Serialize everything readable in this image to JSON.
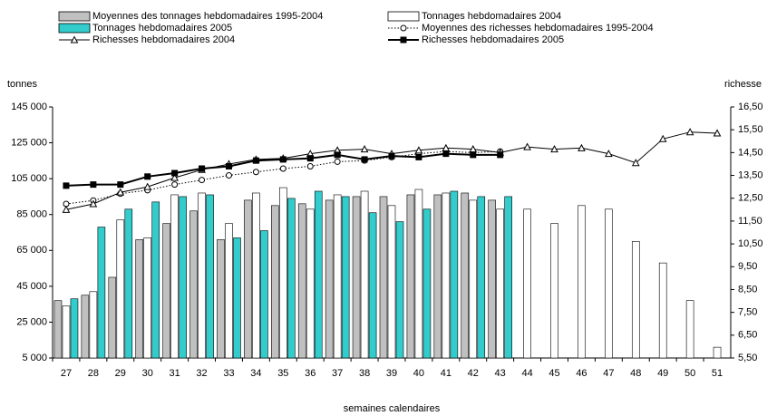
{
  "chart_data": {
    "type": "bar",
    "ylabel": "tonnes",
    "y2label": "richesse",
    "xlabel": "semaines calendaires",
    "categories": [
      "27",
      "28",
      "29",
      "30",
      "31",
      "32",
      "33",
      "34",
      "35",
      "36",
      "37",
      "38",
      "39",
      "40",
      "41",
      "42",
      "43",
      "44",
      "45",
      "46",
      "47",
      "48",
      "49",
      "50",
      "51"
    ],
    "ylim": [
      5000,
      145000
    ],
    "yticks": [
      {
        "value": 5000,
        "label": "5 000"
      },
      {
        "value": 25000,
        "label": "25 000"
      },
      {
        "value": 45000,
        "label": "45 000"
      },
      {
        "value": 65000,
        "label": "65 000"
      },
      {
        "value": 85000,
        "label": "85 000"
      },
      {
        "value": 105000,
        "label": "105 000"
      },
      {
        "value": 125000,
        "label": "125 000"
      },
      {
        "value": 145000,
        "label": "145 000"
      }
    ],
    "y2lim": [
      5.5,
      16.5
    ],
    "y2ticks": [
      {
        "value": 5.5,
        "label": "5,50"
      },
      {
        "value": 6.5,
        "label": "6,50"
      },
      {
        "value": 7.5,
        "label": "7,50"
      },
      {
        "value": 8.5,
        "label": "8,50"
      },
      {
        "value": 9.5,
        "label": "9,50"
      },
      {
        "value": 10.5,
        "label": "10,50"
      },
      {
        "value": 11.5,
        "label": "11,50"
      },
      {
        "value": 12.5,
        "label": "12,50"
      },
      {
        "value": 13.5,
        "label": "13,50"
      },
      {
        "value": 14.5,
        "label": "14,50"
      },
      {
        "value": 15.5,
        "label": "15,50"
      },
      {
        "value": 16.5,
        "label": "16,50"
      }
    ],
    "series": [
      {
        "name": "Moyennes des tonnages hebdomadaires 1995-2004",
        "type": "bar",
        "color": "#c0c0c0",
        "values": [
          37000,
          40000,
          50000,
          71000,
          80000,
          87000,
          71000,
          93000,
          90000,
          91000,
          93000,
          95000,
          95000,
          96000,
          96000,
          97000,
          93000,
          null,
          null,
          null,
          null,
          null,
          null,
          null,
          null
        ]
      },
      {
        "name": "Tonnages hebdomadaires 2004",
        "type": "bar",
        "color": "#ffffff",
        "values": [
          34000,
          42000,
          82000,
          72000,
          96000,
          97000,
          80000,
          97000,
          100000,
          88000,
          96000,
          98000,
          90000,
          99000,
          97000,
          93000,
          88000,
          88000,
          80000,
          90000,
          88000,
          70000,
          58000,
          37000,
          11000
        ]
      },
      {
        "name": "Tonnages hebdomadaires 2005",
        "type": "bar",
        "color": "#33cccc",
        "values": [
          38000,
          78000,
          88000,
          92000,
          95000,
          96000,
          72000,
          76000,
          94000,
          98000,
          95000,
          86000,
          81000,
          88000,
          98000,
          95000,
          95000,
          null,
          null,
          null,
          null,
          null,
          null,
          null,
          null
        ]
      },
      {
        "name": "Moyennes des richesses hebdomadaires 1995-2004",
        "type": "line",
        "axis": "y2",
        "color": "#000000",
        "marker": "circle",
        "dash": "dotted",
        "values": [
          12.25,
          12.4,
          12.7,
          12.85,
          13.1,
          13.3,
          13.5,
          13.65,
          13.8,
          13.9,
          14.1,
          14.15,
          14.3,
          14.45,
          14.55,
          14.5,
          14.55,
          null,
          null,
          null,
          null,
          null,
          null,
          null,
          null
        ]
      },
      {
        "name": "Richesses hebdomadaires 2004",
        "type": "line",
        "axis": "y2",
        "color": "#000000",
        "marker": "triangle",
        "values": [
          12.0,
          12.25,
          12.76,
          13.0,
          13.4,
          13.75,
          14.0,
          14.2,
          14.25,
          14.45,
          14.6,
          14.65,
          14.45,
          14.6,
          14.7,
          14.65,
          14.5,
          14.75,
          14.65,
          14.7,
          14.45,
          14.05,
          15.1,
          15.4,
          15.35
        ]
      },
      {
        "name": "Richesses hebdomadaires 2005",
        "type": "line",
        "axis": "y2",
        "color": "#000000",
        "marker": "square",
        "values": [
          13.05,
          13.1,
          13.1,
          13.45,
          13.6,
          13.8,
          13.9,
          14.15,
          14.2,
          14.25,
          14.4,
          14.2,
          14.35,
          14.3,
          14.45,
          14.4,
          14.4,
          null,
          null,
          null,
          null,
          null,
          null,
          null,
          null
        ]
      }
    ]
  }
}
